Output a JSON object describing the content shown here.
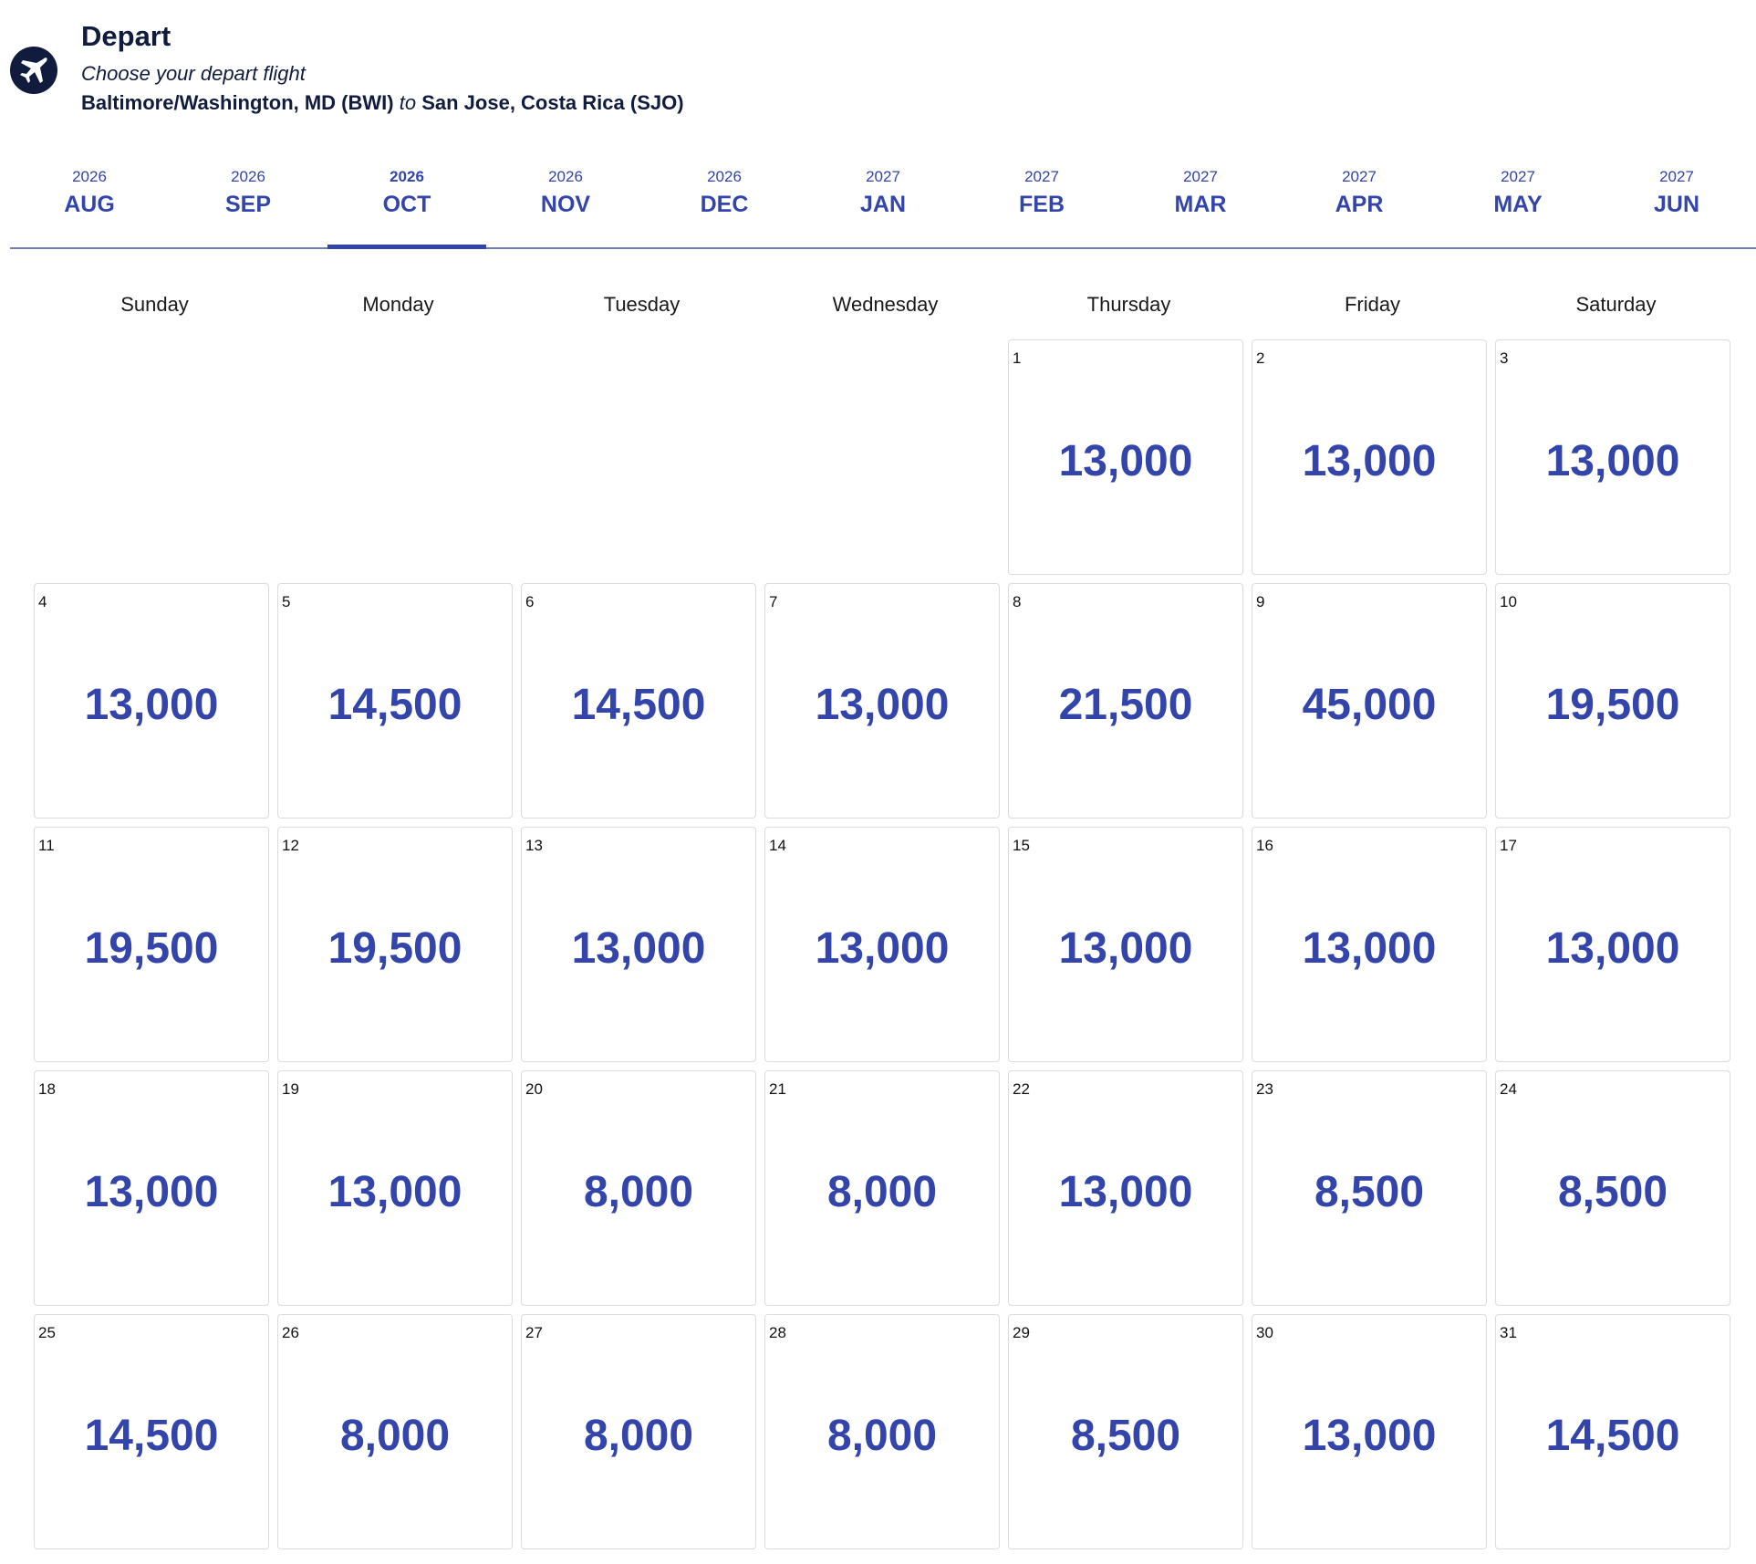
{
  "header": {
    "title": "Depart",
    "subtitle": "Choose your depart flight",
    "route": {
      "origin": "Baltimore/Washington, MD (BWI)",
      "connector": "to",
      "destination": "San Jose, Costa Rica (SJO)"
    }
  },
  "months": [
    {
      "year": "2026",
      "month": "AUG"
    },
    {
      "year": "2026",
      "month": "SEP"
    },
    {
      "year": "2026",
      "month": "OCT",
      "selected": true
    },
    {
      "year": "2026",
      "month": "NOV"
    },
    {
      "year": "2026",
      "month": "DEC"
    },
    {
      "year": "2027",
      "month": "JAN"
    },
    {
      "year": "2027",
      "month": "FEB"
    },
    {
      "year": "2027",
      "month": "MAR"
    },
    {
      "year": "2027",
      "month": "APR"
    },
    {
      "year": "2027",
      "month": "MAY"
    },
    {
      "year": "2027",
      "month": "JUN"
    }
  ],
  "weekdays": [
    "Sunday",
    "Monday",
    "Tuesday",
    "Wednesday",
    "Thursday",
    "Friday",
    "Saturday"
  ],
  "weeks": [
    [
      null,
      null,
      null,
      null,
      {
        "day": "1",
        "price": "13,000"
      },
      {
        "day": "2",
        "price": "13,000"
      },
      {
        "day": "3",
        "price": "13,000"
      }
    ],
    [
      {
        "day": "4",
        "price": "13,000"
      },
      {
        "day": "5",
        "price": "14,500"
      },
      {
        "day": "6",
        "price": "14,500"
      },
      {
        "day": "7",
        "price": "13,000"
      },
      {
        "day": "8",
        "price": "21,500"
      },
      {
        "day": "9",
        "price": "45,000"
      },
      {
        "day": "10",
        "price": "19,500"
      }
    ],
    [
      {
        "day": "11",
        "price": "19,500"
      },
      {
        "day": "12",
        "price": "19,500"
      },
      {
        "day": "13",
        "price": "13,000"
      },
      {
        "day": "14",
        "price": "13,000"
      },
      {
        "day": "15",
        "price": "13,000"
      },
      {
        "day": "16",
        "price": "13,000"
      },
      {
        "day": "17",
        "price": "13,000"
      }
    ],
    [
      {
        "day": "18",
        "price": "13,000"
      },
      {
        "day": "19",
        "price": "13,000"
      },
      {
        "day": "20",
        "price": "8,000"
      },
      {
        "day": "21",
        "price": "8,000"
      },
      {
        "day": "22",
        "price": "13,000"
      },
      {
        "day": "23",
        "price": "8,500"
      },
      {
        "day": "24",
        "price": "8,500"
      }
    ],
    [
      {
        "day": "25",
        "price": "14,500"
      },
      {
        "day": "26",
        "price": "8,000"
      },
      {
        "day": "27",
        "price": "8,000"
      },
      {
        "day": "28",
        "price": "8,000"
      },
      {
        "day": "29",
        "price": "8,500"
      },
      {
        "day": "30",
        "price": "13,000"
      },
      {
        "day": "31",
        "price": "14,500"
      }
    ]
  ]
}
